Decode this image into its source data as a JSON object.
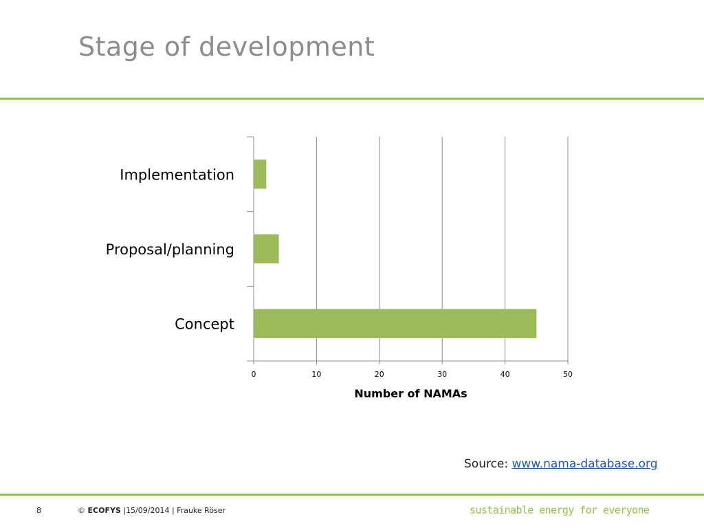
{
  "slide": {
    "title": "Stage of development",
    "source_label": "Source:",
    "source_link": "www.nama-database.org",
    "page_number": "8",
    "copyright_symbol": "©",
    "company": "ECOFYS",
    "footer_info": "|15/09/2014 | Frauke Röser",
    "tagline": "sustainable energy for everyone",
    "accent_color": "#8dc63f"
  },
  "chart_data": {
    "type": "bar",
    "orientation": "horizontal",
    "categories": [
      "Implementation",
      "Proposal/planning",
      "Concept"
    ],
    "values": [
      2,
      4,
      45
    ],
    "xlabel": "Number of NAMAs",
    "ylabel": "",
    "xlim": [
      0,
      50
    ],
    "xticks": [
      0,
      10,
      20,
      30,
      40,
      50
    ],
    "bar_color": "#9bbb59",
    "grid": true
  }
}
